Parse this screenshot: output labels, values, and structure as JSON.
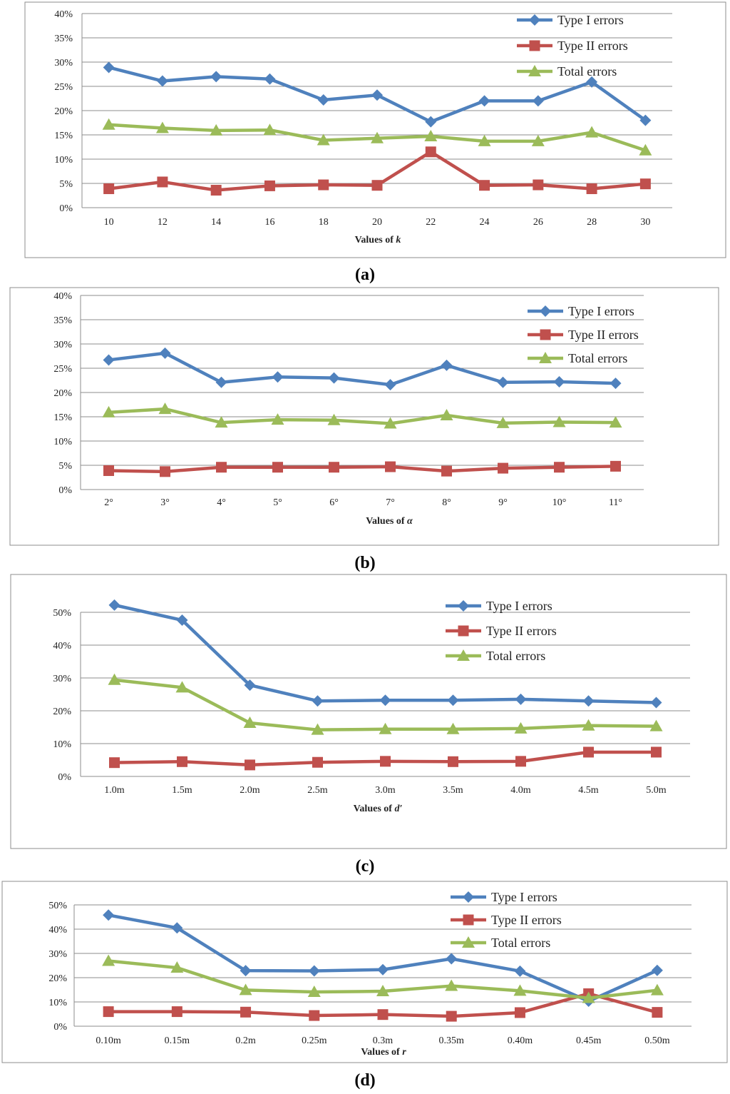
{
  "chart_data": [
    {
      "type": "line",
      "caption": "(a)",
      "x_title_prefix": "Values of ",
      "x_symbol": "k",
      "categories": [
        "10",
        "12",
        "14",
        "16",
        "18",
        "20",
        "22",
        "24",
        "26",
        "28",
        "30"
      ],
      "ylim": [
        0,
        40
      ],
      "yticks": [
        0,
        5,
        10,
        15,
        20,
        25,
        30,
        35,
        40
      ],
      "series": [
        {
          "name": "Type I errors",
          "marker": "diamond",
          "color": "#4f81bd",
          "values": [
            28.9,
            26.1,
            27.0,
            26.5,
            22.2,
            23.2,
            17.7,
            22.0,
            22.0,
            25.9,
            18.0
          ]
        },
        {
          "name": "Type II errors",
          "marker": "square",
          "color": "#c0504d",
          "values": [
            3.9,
            5.3,
            3.6,
            4.5,
            4.7,
            4.6,
            11.5,
            4.6,
            4.7,
            3.9,
            4.9
          ]
        },
        {
          "name": "Total errors",
          "marker": "triangle",
          "color": "#9bbb59",
          "values": [
            17.1,
            16.4,
            15.9,
            16.0,
            13.9,
            14.3,
            14.7,
            13.7,
            13.7,
            15.5,
            11.8
          ]
        }
      ]
    },
    {
      "type": "line",
      "caption": "(b)",
      "x_title_prefix": "Values of ",
      "x_symbol": "α",
      "categories": [
        "2°",
        "3°",
        "4°",
        "5°",
        "6°",
        "7°",
        "8°",
        "9°",
        "10°",
        "11°"
      ],
      "ylim": [
        0,
        40
      ],
      "yticks": [
        0,
        5,
        10,
        15,
        20,
        25,
        30,
        35,
        40
      ],
      "series": [
        {
          "name": "Type I errors",
          "marker": "diamond",
          "color": "#4f81bd",
          "values": [
            26.7,
            28.1,
            22.1,
            23.2,
            23.0,
            21.6,
            25.6,
            22.1,
            22.2,
            21.9
          ]
        },
        {
          "name": "Type II errors",
          "marker": "square",
          "color": "#c0504d",
          "values": [
            3.9,
            3.7,
            4.6,
            4.6,
            4.6,
            4.7,
            3.8,
            4.4,
            4.6,
            4.8
          ]
        },
        {
          "name": "Total errors",
          "marker": "triangle",
          "color": "#9bbb59",
          "values": [
            15.9,
            16.6,
            13.8,
            14.4,
            14.3,
            13.6,
            15.3,
            13.7,
            13.9,
            13.8
          ]
        }
      ]
    },
    {
      "type": "line",
      "caption": "(c)",
      "x_title_prefix": "Values of  ",
      "x_symbol": "d′",
      "categories": [
        "1.0m",
        "1.5m",
        "2.0m",
        "2.5m",
        "3.0m",
        "3.5m",
        "4.0m",
        "4.5m",
        "5.0m"
      ],
      "ylim": [
        0,
        50
      ],
      "yticks": [
        0,
        10,
        20,
        30,
        40,
        50
      ],
      "series": [
        {
          "name": "Type I errors",
          "marker": "diamond",
          "color": "#4f81bd",
          "values": [
            52.2,
            47.6,
            27.8,
            23.0,
            23.2,
            23.2,
            23.5,
            23.0,
            22.5
          ]
        },
        {
          "name": "Type II errors",
          "marker": "square",
          "color": "#c0504d",
          "values": [
            4.2,
            4.5,
            3.5,
            4.3,
            4.6,
            4.5,
            4.6,
            7.4,
            7.4
          ]
        },
        {
          "name": "Total errors",
          "marker": "triangle",
          "color": "#9bbb59",
          "values": [
            29.4,
            27.1,
            16.3,
            14.2,
            14.4,
            14.4,
            14.6,
            15.5,
            15.3
          ]
        }
      ]
    },
    {
      "type": "line",
      "caption": "(d)",
      "x_title_prefix": "Values of  ",
      "x_symbol": "r",
      "categories": [
        "0.10m",
        "0.15m",
        "0.2m",
        "0.25m",
        "0.3m",
        "0.35m",
        "0.40m",
        "0.45m",
        "0.50m"
      ],
      "ylim": [
        0,
        50
      ],
      "yticks": [
        0,
        10,
        20,
        30,
        40,
        50
      ],
      "series": [
        {
          "name": "Type I errors",
          "marker": "diamond",
          "color": "#4f81bd",
          "values": [
            45.8,
            40.5,
            22.9,
            22.8,
            23.3,
            27.8,
            22.7,
            10.3,
            23.0
          ]
        },
        {
          "name": "Type II errors",
          "marker": "square",
          "color": "#c0504d",
          "values": [
            6.0,
            6.0,
            5.8,
            4.4,
            4.8,
            4.1,
            5.6,
            13.4,
            5.7
          ]
        },
        {
          "name": "Total errors",
          "marker": "triangle",
          "color": "#9bbb59",
          "values": [
            26.9,
            24.1,
            14.9,
            14.1,
            14.4,
            16.6,
            14.6,
            11.6,
            14.8
          ]
        }
      ]
    }
  ]
}
